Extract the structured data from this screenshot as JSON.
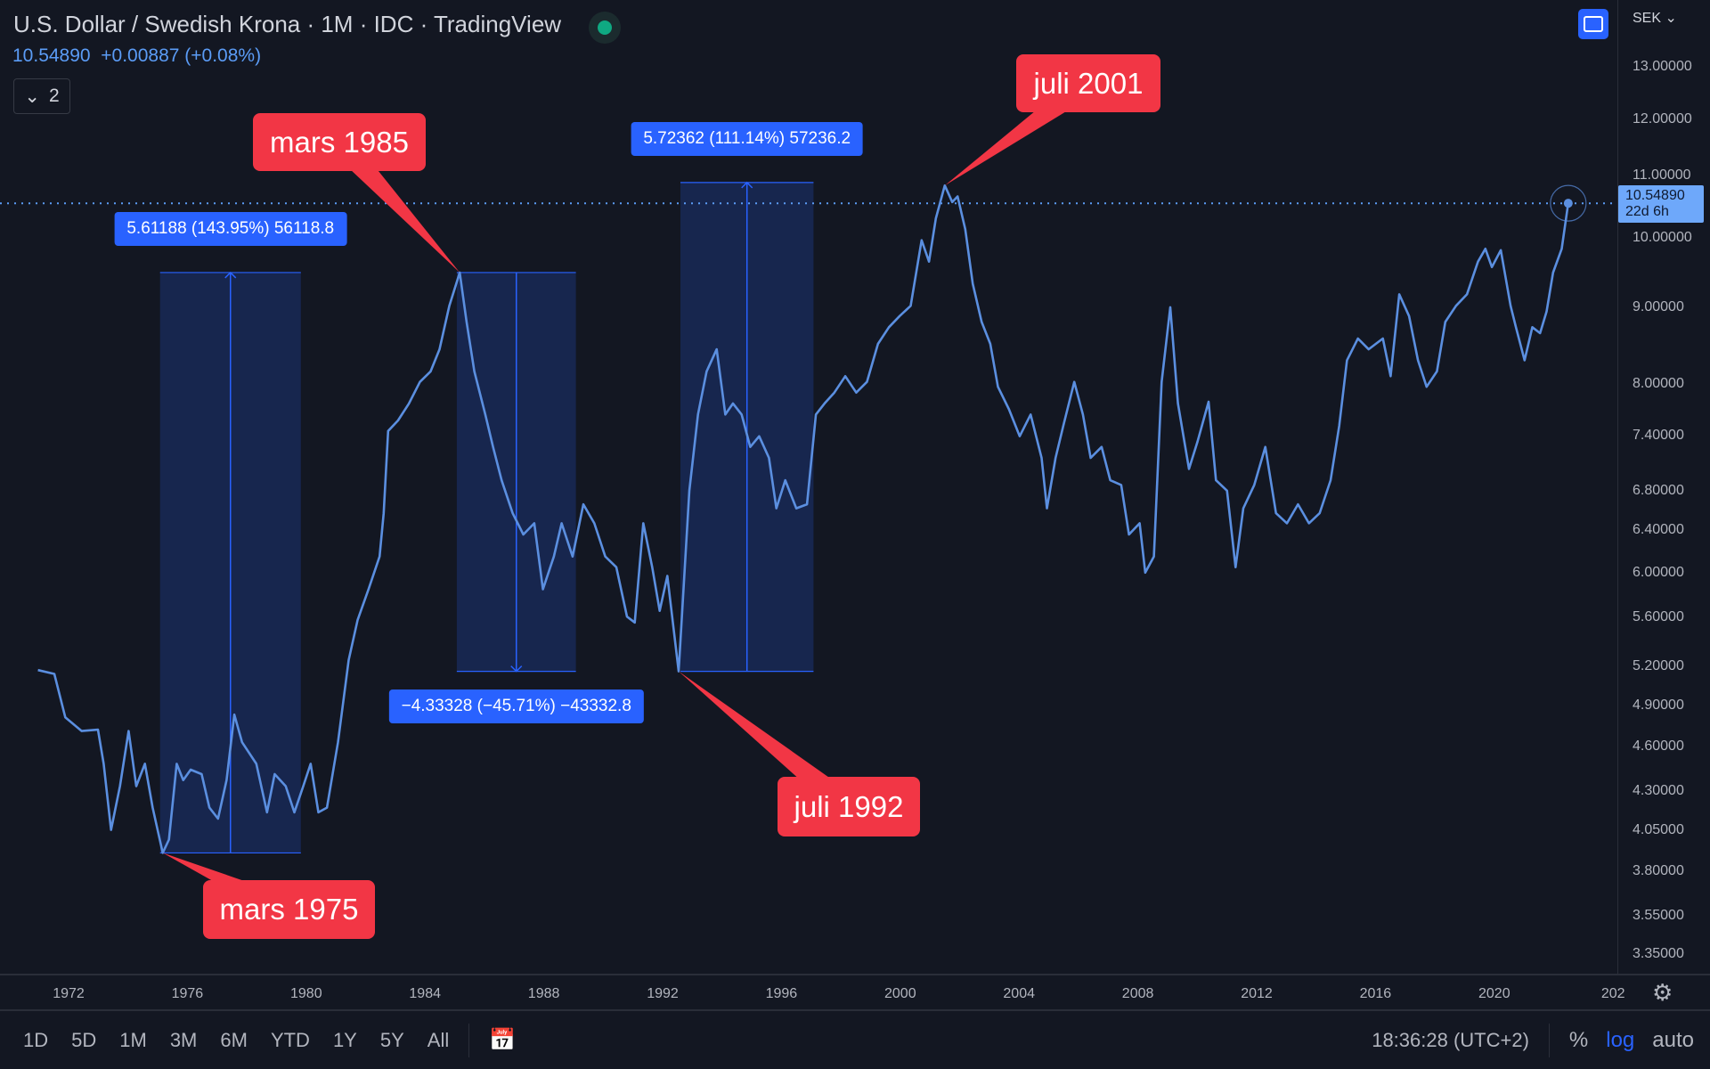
{
  "header": {
    "title": "U.S. Dollar / Swedish Krona · 1M · IDC · TradingView",
    "last": "10.54890",
    "change": "+0.00887 (+0.08%)",
    "indicators_count": "2"
  },
  "axis": {
    "currency": "SEK",
    "last_price": "10.54890",
    "countdown": "22d 6h",
    "ticks": [
      "13.00000",
      "12.00000",
      "11.00000",
      "10.00000",
      "9.00000",
      "8.00000",
      "7.40000",
      "6.80000",
      "6.40000",
      "6.00000",
      "5.60000",
      "5.20000",
      "4.90000",
      "4.60000",
      "4.30000",
      "4.05000",
      "3.80000",
      "3.55000",
      "3.35000"
    ]
  },
  "time_axis": [
    "1972",
    "1976",
    "1980",
    "1984",
    "1988",
    "1992",
    "1996",
    "2000",
    "2004",
    "2008",
    "2012",
    "2016",
    "2020",
    "202"
  ],
  "bottom": {
    "ranges": [
      "1D",
      "5D",
      "1M",
      "3M",
      "6M",
      "YTD",
      "1Y",
      "5Y",
      "All"
    ],
    "clock": "18:36:28 (UTC+2)",
    "percent": "%",
    "log": "log",
    "auto": "auto"
  },
  "colors": {
    "line": "#5b8fe0",
    "callout": "#f23645",
    "measure": "#2962ff"
  },
  "callouts": [
    {
      "text": "mars 1975",
      "year": 1975.17,
      "price": 3.91
    },
    {
      "text": "mars 1985",
      "year": 1985.17,
      "price": 9.49
    },
    {
      "text": "juli 1992",
      "year": 1992.54,
      "price": 5.16
    },
    {
      "text": "juli 2001",
      "year": 2001.5,
      "price": 10.84
    }
  ],
  "measures": [
    {
      "label": "5.61188 (143.95%) 56118.8",
      "from_year": 1975.08,
      "to_year": 1979.82,
      "from_price": 3.91,
      "to_price": 9.49
    },
    {
      "label": "−4.33328 (−45.71%) −43332.8",
      "from_year": 1985.07,
      "to_year": 1989.08,
      "from_price": 9.49,
      "to_price": 5.16
    },
    {
      "label": "5.72362 (111.14%) 57236.2",
      "from_year": 1992.6,
      "to_year": 1997.08,
      "from_price": 5.16,
      "to_price": 10.89
    }
  ],
  "chart_data": {
    "type": "line",
    "title": "U.S. Dollar / Swedish Krona",
    "ylabel": "SEK",
    "yscale": "log",
    "ylim": [
      3.3,
      13.5
    ],
    "xlim": [
      1970.6,
      2025.0
    ],
    "points": [
      [
        1970.97,
        5.17
      ],
      [
        1971.52,
        5.14
      ],
      [
        1971.89,
        4.81
      ],
      [
        1972.44,
        4.71
      ],
      [
        1972.99,
        4.72
      ],
      [
        1973.18,
        4.48
      ],
      [
        1973.43,
        4.05
      ],
      [
        1973.73,
        4.33
      ],
      [
        1974.02,
        4.71
      ],
      [
        1974.28,
        4.33
      ],
      [
        1974.57,
        4.48
      ],
      [
        1974.83,
        4.19
      ],
      [
        1975.17,
        3.91
      ],
      [
        1975.38,
        3.99
      ],
      [
        1975.64,
        4.48
      ],
      [
        1975.86,
        4.37
      ],
      [
        1976.11,
        4.44
      ],
      [
        1976.48,
        4.41
      ],
      [
        1976.74,
        4.19
      ],
      [
        1977.03,
        4.12
      ],
      [
        1977.32,
        4.37
      ],
      [
        1977.58,
        4.83
      ],
      [
        1977.84,
        4.63
      ],
      [
        1978.32,
        4.48
      ],
      [
        1978.68,
        4.16
      ],
      [
        1978.94,
        4.41
      ],
      [
        1979.31,
        4.33
      ],
      [
        1979.6,
        4.16
      ],
      [
        1979.9,
        4.33
      ],
      [
        1980.15,
        4.48
      ],
      [
        1980.41,
        4.16
      ],
      [
        1980.7,
        4.19
      ],
      [
        1981.07,
        4.63
      ],
      [
        1981.43,
        5.25
      ],
      [
        1981.73,
        5.58
      ],
      [
        1982.1,
        5.85
      ],
      [
        1982.47,
        6.15
      ],
      [
        1982.61,
        6.57
      ],
      [
        1982.76,
        7.45
      ],
      [
        1983.09,
        7.57
      ],
      [
        1983.46,
        7.77
      ],
      [
        1983.83,
        8.03
      ],
      [
        1984.19,
        8.16
      ],
      [
        1984.49,
        8.44
      ],
      [
        1984.82,
        9.02
      ],
      [
        1985.17,
        9.49
      ],
      [
        1985.4,
        8.8
      ],
      [
        1985.66,
        8.16
      ],
      [
        1986.03,
        7.64
      ],
      [
        1986.29,
        7.27
      ],
      [
        1986.58,
        6.91
      ],
      [
        1986.95,
        6.57
      ],
      [
        1987.31,
        6.36
      ],
      [
        1987.68,
        6.47
      ],
      [
        1987.97,
        5.85
      ],
      [
        1988.34,
        6.15
      ],
      [
        1988.6,
        6.47
      ],
      [
        1988.97,
        6.15
      ],
      [
        1989.33,
        6.66
      ],
      [
        1989.7,
        6.47
      ],
      [
        1990.07,
        6.15
      ],
      [
        1990.44,
        6.05
      ],
      [
        1990.8,
        5.61
      ],
      [
        1991.06,
        5.56
      ],
      [
        1991.35,
        6.47
      ],
      [
        1991.65,
        6.05
      ],
      [
        1991.9,
        5.66
      ],
      [
        1992.16,
        5.97
      ],
      [
        1992.54,
        5.16
      ],
      [
        1992.9,
        6.8
      ],
      [
        1993.19,
        7.64
      ],
      [
        1993.48,
        8.16
      ],
      [
        1993.82,
        8.44
      ],
      [
        1994.11,
        7.64
      ],
      [
        1994.37,
        7.77
      ],
      [
        1994.66,
        7.64
      ],
      [
        1994.95,
        7.27
      ],
      [
        1995.25,
        7.39
      ],
      [
        1995.58,
        7.15
      ],
      [
        1995.83,
        6.62
      ],
      [
        1996.13,
        6.91
      ],
      [
        1996.5,
        6.62
      ],
      [
        1996.86,
        6.66
      ],
      [
        1997.16,
        7.64
      ],
      [
        1997.45,
        7.77
      ],
      [
        1997.78,
        7.9
      ],
      [
        1998.15,
        8.1
      ],
      [
        1998.52,
        7.9
      ],
      [
        1998.88,
        8.03
      ],
      [
        1999.25,
        8.51
      ],
      [
        1999.62,
        8.73
      ],
      [
        1999.98,
        8.88
      ],
      [
        2000.35,
        9.02
      ],
      [
        2000.72,
        9.97
      ],
      [
        2000.97,
        9.65
      ],
      [
        2001.2,
        10.31
      ],
      [
        2001.5,
        10.84
      ],
      [
        2001.75,
        10.57
      ],
      [
        2001.93,
        10.66
      ],
      [
        2002.19,
        10.14
      ],
      [
        2002.44,
        9.33
      ],
      [
        2002.74,
        8.8
      ],
      [
        2003.03,
        8.51
      ],
      [
        2003.29,
        7.97
      ],
      [
        2003.66,
        7.7
      ],
      [
        2004.02,
        7.39
      ],
      [
        2004.39,
        7.64
      ],
      [
        2004.76,
        7.15
      ],
      [
        2004.94,
        6.62
      ],
      [
        2005.23,
        7.15
      ],
      [
        2005.49,
        7.51
      ],
      [
        2005.86,
        8.03
      ],
      [
        2006.15,
        7.64
      ],
      [
        2006.41,
        7.15
      ],
      [
        2006.78,
        7.27
      ],
      [
        2007.07,
        6.91
      ],
      [
        2007.44,
        6.86
      ],
      [
        2007.7,
        6.36
      ],
      [
        2008.06,
        6.47
      ],
      [
        2008.25,
        6.0
      ],
      [
        2008.54,
        6.15
      ],
      [
        2008.8,
        8.03
      ],
      [
        2009.09,
        9.0
      ],
      [
        2009.35,
        7.77
      ],
      [
        2009.72,
        7.03
      ],
      [
        2010.01,
        7.33
      ],
      [
        2010.38,
        7.79
      ],
      [
        2010.63,
        6.91
      ],
      [
        2011.0,
        6.8
      ],
      [
        2011.29,
        6.05
      ],
      [
        2011.55,
        6.62
      ],
      [
        2011.92,
        6.86
      ],
      [
        2012.29,
        7.27
      ],
      [
        2012.65,
        6.57
      ],
      [
        2013.02,
        6.47
      ],
      [
        2013.39,
        6.66
      ],
      [
        2013.76,
        6.47
      ],
      [
        2014.12,
        6.57
      ],
      [
        2014.49,
        6.91
      ],
      [
        2014.78,
        7.51
      ],
      [
        2015.04,
        8.3
      ],
      [
        2015.41,
        8.58
      ],
      [
        2015.77,
        8.44
      ],
      [
        2016.25,
        8.58
      ],
      [
        2016.51,
        8.1
      ],
      [
        2016.8,
        9.18
      ],
      [
        2017.13,
        8.88
      ],
      [
        2017.43,
        8.3
      ],
      [
        2017.72,
        7.97
      ],
      [
        2018.07,
        8.16
      ],
      [
        2018.35,
        8.8
      ],
      [
        2018.71,
        9.02
      ],
      [
        2019.08,
        9.18
      ],
      [
        2019.45,
        9.65
      ],
      [
        2019.7,
        9.84
      ],
      [
        2019.92,
        9.57
      ],
      [
        2020.22,
        9.82
      ],
      [
        2020.55,
        9.02
      ],
      [
        2020.73,
        8.73
      ],
      [
        2021.02,
        8.3
      ],
      [
        2021.28,
        8.73
      ],
      [
        2021.54,
        8.65
      ],
      [
        2021.76,
        8.94
      ],
      [
        2021.98,
        9.49
      ],
      [
        2022.27,
        9.84
      ],
      [
        2022.49,
        10.55
      ]
    ]
  }
}
